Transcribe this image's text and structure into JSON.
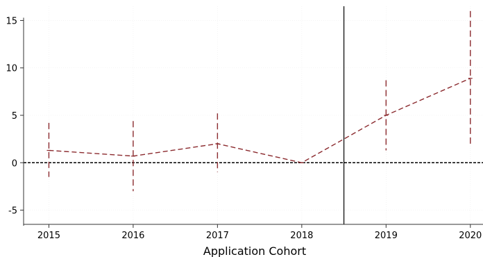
{
  "chart_data": {
    "type": "line",
    "title": "",
    "xlabel": "Application Cohort",
    "ylabel": "",
    "x": [
      2015,
      2016,
      2017,
      2018,
      2019,
      2020
    ],
    "xticks": [
      "2015",
      "2016",
      "2017",
      "2018",
      "2019",
      "2020"
    ],
    "yticks": [
      "-5",
      "0",
      "5",
      "10",
      "15"
    ],
    "xlim": [
      2014.7,
      2020.15
    ],
    "ylim": [
      -6.5,
      16.5
    ],
    "series": [
      {
        "values": [
          1.3,
          0.7,
          2.0,
          0.0,
          5.0,
          8.9
        ],
        "ci_low": [
          -1.5,
          -3.0,
          -1.0,
          0.0,
          1.3,
          2.0
        ],
        "ci_high": [
          4.2,
          4.4,
          5.2,
          0.0,
          8.7,
          16.0
        ],
        "color": "#8b2a2e",
        "line_style": "dashed"
      }
    ],
    "reference_lines": {
      "horizontal_y": 0,
      "vertical_x": 2018.5
    },
    "grid": true,
    "legend": "none"
  }
}
